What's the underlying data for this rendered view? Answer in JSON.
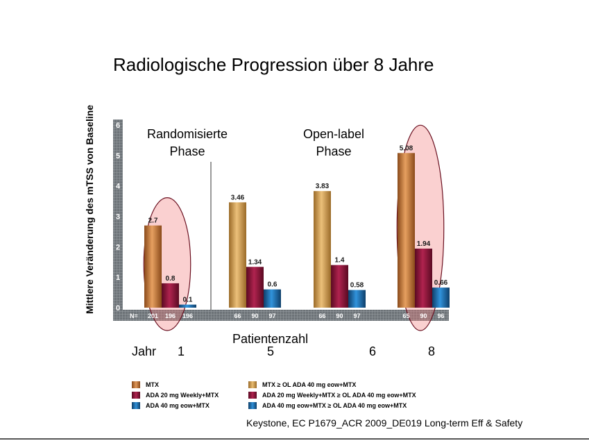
{
  "chart_data": {
    "type": "bar",
    "title": "Radiologische Progression über 8 Jahre",
    "ylabel": "Mittlere Veränderung des mTSS von Baseline",
    "xlabel": "Patientenzahl",
    "ylim": [
      0,
      6
    ],
    "yticks": [
      "0",
      "1",
      "2",
      "3",
      "4",
      "5",
      "6"
    ],
    "n_prefix": "N=",
    "phases": [
      "Randomisierte Phase",
      "Open-label Phase"
    ],
    "year_prefix": "Jahr",
    "groups": [
      {
        "year": "1",
        "bars": [
          {
            "series": "MTX",
            "value": 2.7,
            "label": "2.7",
            "n": "201"
          },
          {
            "series": "ADA 20 mg Weekly+MTX",
            "value": 0.8,
            "label": "0.8",
            "n": "196"
          },
          {
            "series": "ADA 40 mg eow+MTX",
            "value": 0.1,
            "label": "0.1",
            "n": "196"
          }
        ]
      },
      {
        "year": "5",
        "bars": [
          {
            "series": "MTX ≥ OL ADA 40 mg eow+MTX",
            "value": 3.46,
            "label": "3.46",
            "n": "66"
          },
          {
            "series": "ADA 20 mg Weekly+MTX ≥ OL ADA 40 mg eow+MTX",
            "value": 1.34,
            "label": "1.34",
            "n": "90"
          },
          {
            "series": "ADA 40 mg eow+MTX ≥ OL ADA 40 mg eow+MTX",
            "value": 0.6,
            "label": "0.6",
            "n": "97"
          }
        ]
      },
      {
        "year": "6",
        "bars": [
          {
            "series": "MTX ≥ OL ADA 40 mg eow+MTX",
            "value": 3.83,
            "label": "3.83",
            "n": "66"
          },
          {
            "series": "ADA 20 mg Weekly+MTX ≥ OL ADA 40 mg eow+MTX",
            "value": 1.4,
            "label": "1.4",
            "n": "90"
          },
          {
            "series": "ADA 40 mg eow+MTX ≥ OL ADA 40 mg eow+MTX",
            "value": 0.58,
            "label": "0.58",
            "n": "97"
          }
        ]
      },
      {
        "year": "8",
        "bars": [
          {
            "series": "MTX ≥ OL ADA 40 mg eow+MTX",
            "value": 5.08,
            "label": "5.08",
            "n": "65"
          },
          {
            "series": "ADA 20 mg Weekly+MTX ≥ OL ADA 40 mg eow+MTX",
            "value": 1.94,
            "label": "1.94",
            "n": "90"
          },
          {
            "series": "ADA 40 mg eow+MTX ≥ OL ADA 40 mg eow+MTX",
            "value": 0.66,
            "label": "0.66",
            "n": "96"
          }
        ]
      }
    ],
    "legend": [
      {
        "label": "MTX",
        "color": "#c0773a"
      },
      {
        "label": "MTX ≥ OL ADA 40 mg eow+MTX",
        "color": "#d4a04a"
      },
      {
        "label": "ADA 20 mg Weekly+MTX",
        "color": "#8a1235"
      },
      {
        "label": "ADA 20 mg Weekly+MTX ≥ OL ADA 40 mg eow+MTX",
        "color": "#8a1235"
      },
      {
        "label": "ADA 40 mg eow+MTX",
        "color": "#1d6aa6"
      },
      {
        "label": "ADA 40 mg eow+MTX ≥ OL ADA 40 mg eow+MTX",
        "color": "#1d6aa6"
      }
    ],
    "highlighted_groups": [
      "1",
      "8"
    ]
  },
  "source": "Keystone, EC P1679_ACR 2009_DE019 Long-term Eff & Safety"
}
